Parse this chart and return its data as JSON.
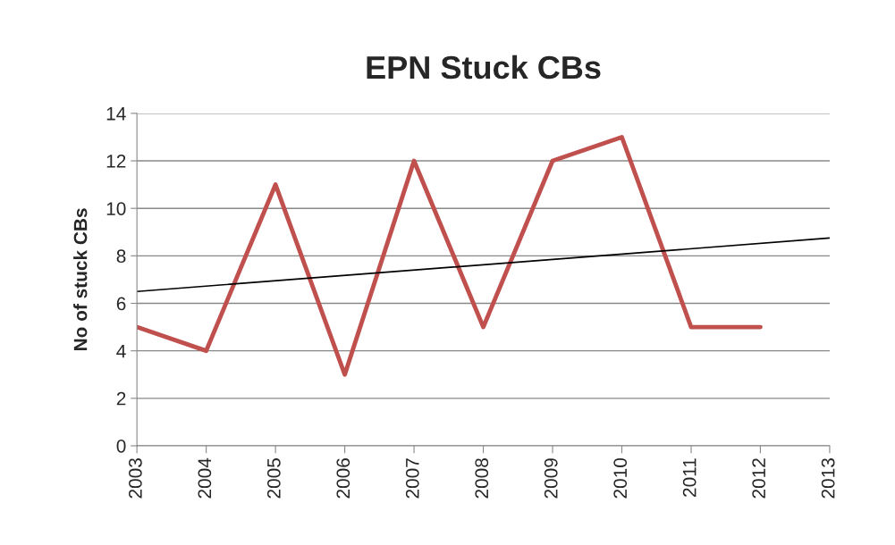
{
  "chart_data": {
    "type": "line",
    "title": "EPN Stuck CBs",
    "ylabel": "No of stuck CBs",
    "x": [
      2003,
      2004,
      2005,
      2006,
      2007,
      2008,
      2009,
      2010,
      2011,
      2012
    ],
    "series": [
      {
        "color": "#c0504d",
        "values": [
          5,
          4,
          11,
          3,
          12,
          5,
          12,
          13,
          5,
          5
        ]
      },
      {
        "type": "line",
        "color": "#000000",
        "x": [
          2003,
          2013
        ],
        "values": [
          6.5,
          8.75
        ]
      }
    ],
    "xlim": [
      2003,
      2013
    ],
    "xticks": [
      2003,
      2004,
      2005,
      2006,
      2007,
      2008,
      2009,
      2010,
      2011,
      2012,
      2013
    ],
    "ylim": [
      0,
      14
    ],
    "yticks": [
      0,
      2,
      4,
      6,
      8,
      10,
      12,
      14
    ],
    "grid": "y",
    "marker": "none",
    "line_style": "solid"
  }
}
